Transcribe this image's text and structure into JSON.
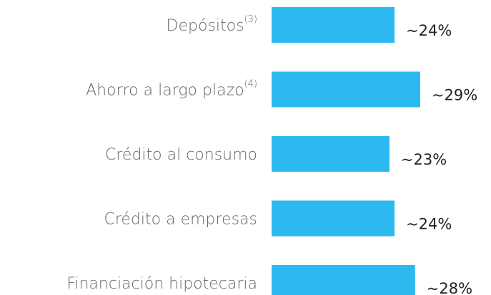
{
  "chart_data": {
    "type": "barh",
    "categories": [
      "Depósitos",
      "Ahorro a largo plazo",
      "Crédito al consumo",
      "Crédito a empresas",
      "Financiación hipotecaria"
    ],
    "category_notes": [
      "(3)",
      "(4)",
      null,
      null,
      null
    ],
    "values": [
      24,
      29,
      23,
      24,
      28
    ],
    "value_labels": [
      "~24%",
      "~29%",
      "~23%",
      "~24%",
      "~28%"
    ],
    "color": "#2cb9ef"
  }
}
